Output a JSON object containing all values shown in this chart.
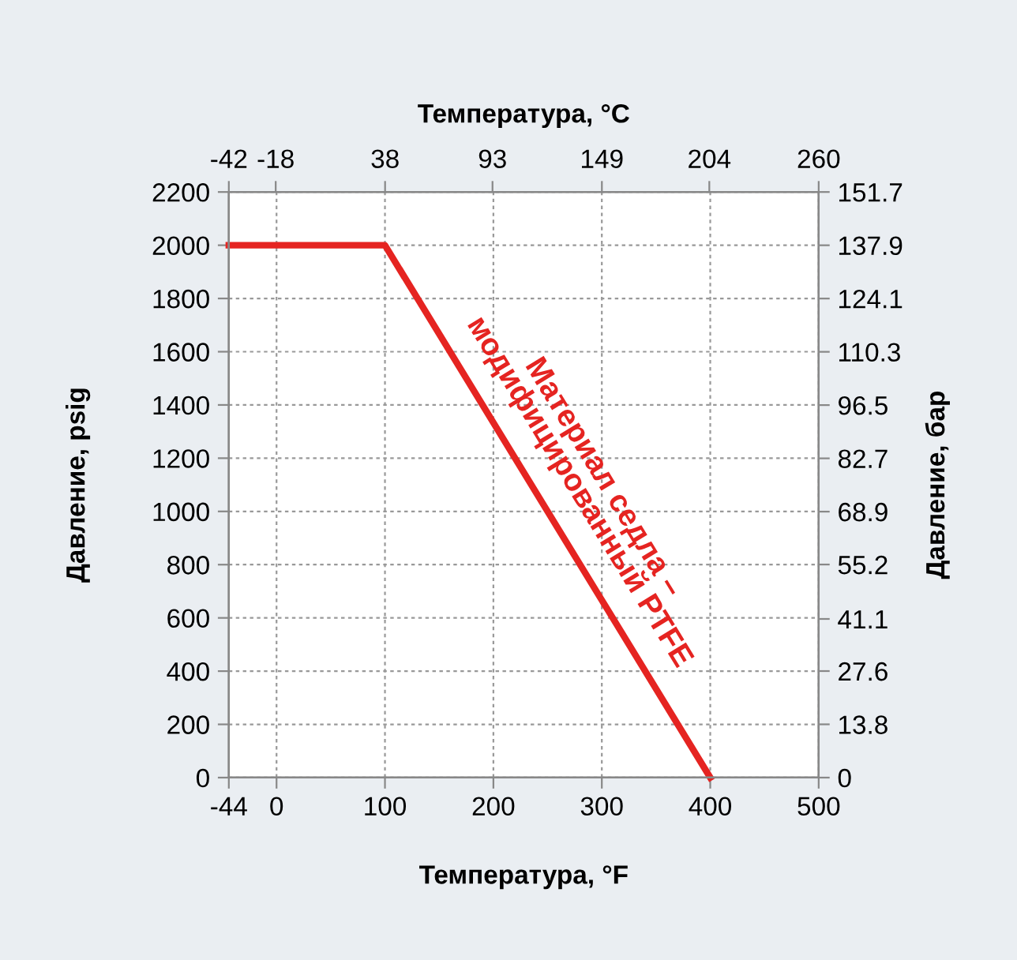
{
  "chart_data": {
    "type": "line",
    "xlabel": "Температура, °F",
    "x2label": "Температура, °C",
    "ylabel": "Давление, psig",
    "y2label": "Давление, бар",
    "x": [
      -44,
      100,
      400
    ],
    "series": [
      {
        "color": "#e52421",
        "values": [
          2000,
          2000,
          0
        ]
      }
    ],
    "xlim": [
      -44,
      500
    ],
    "xticks": [
      -44,
      0,
      100,
      200,
      300,
      400,
      500
    ],
    "x2lim": [
      -42,
      260
    ],
    "x2ticks": [
      -42,
      -18,
      38,
      93,
      149,
      204,
      260
    ],
    "ylim": [
      0,
      2200
    ],
    "yticks": [
      0,
      200,
      400,
      600,
      800,
      1000,
      1200,
      1400,
      1600,
      1800,
      2000,
      2200
    ],
    "y2lim": [
      0,
      151.7
    ],
    "y2ticks": [
      0,
      13.8,
      27.6,
      41.1,
      55.2,
      68.9,
      82.7,
      96.5,
      110.3,
      124.1,
      137.9,
      151.7
    ],
    "grid": true,
    "line_style": "solid",
    "marker": "none",
    "legend": false,
    "annotations": [
      "Материал седла –\nмодифицированный PTFE"
    ]
  }
}
